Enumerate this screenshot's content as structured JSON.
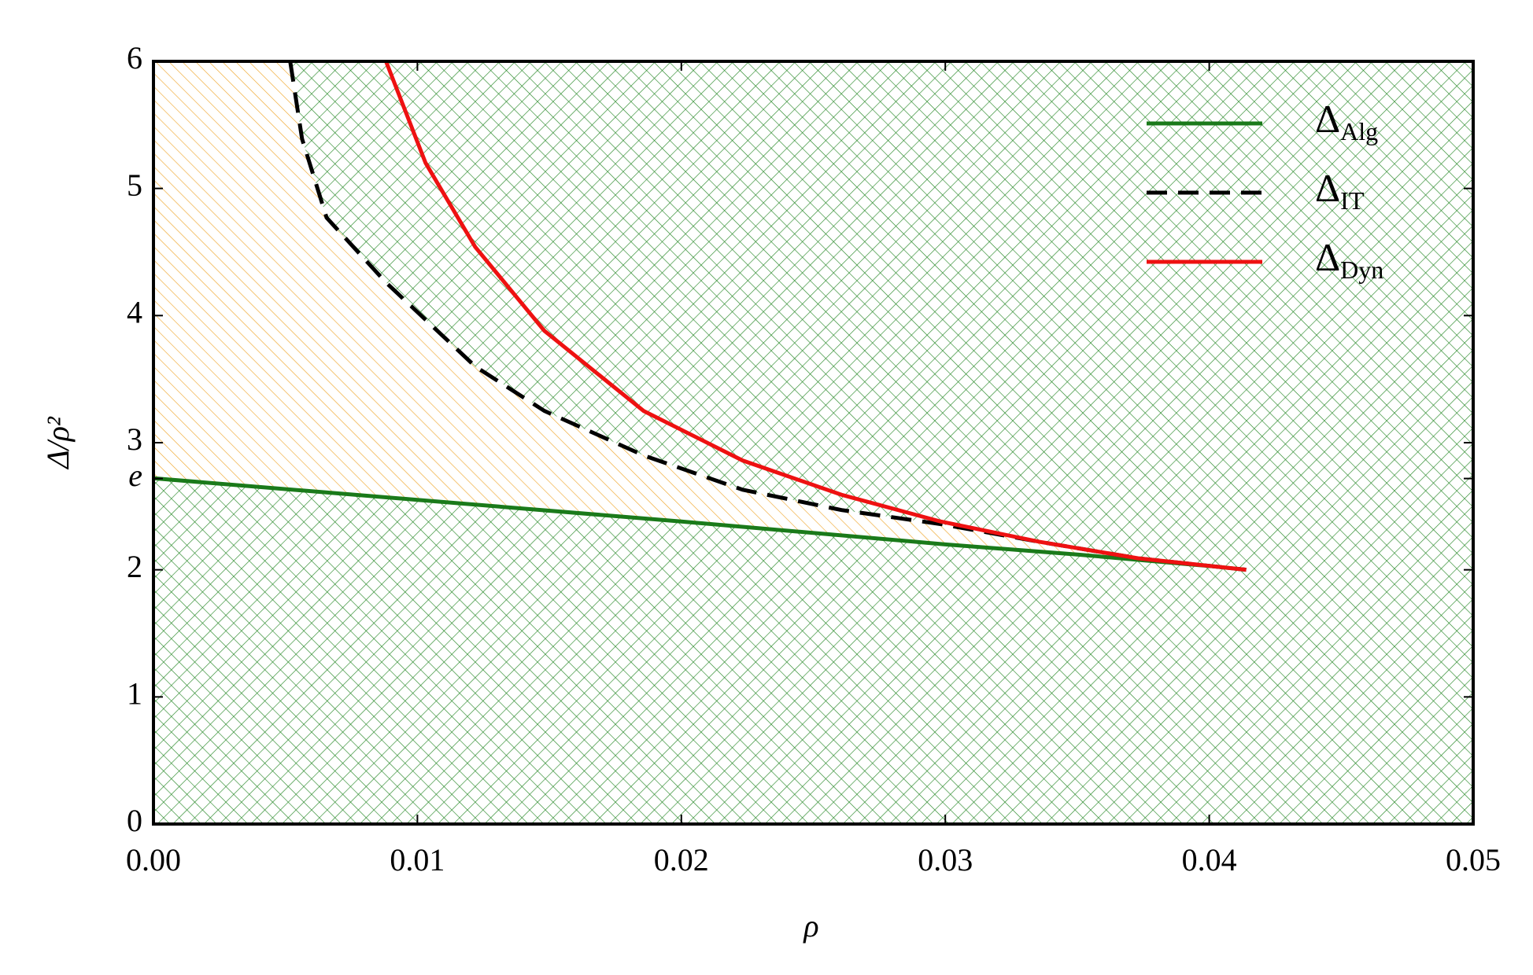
{
  "chart_data": {
    "type": "line",
    "xlabel": "ρ",
    "ylabel": "Δ/ρ²",
    "xlim": [
      0,
      0.05
    ],
    "ylim": [
      0,
      6
    ],
    "xticks": [
      {
        "value": 0,
        "label": "0.00"
      },
      0.01,
      0.02,
      0.03,
      0.04,
      0.05
    ],
    "yticks": [
      0,
      1,
      2,
      {
        "value": 2.718,
        "label": "e"
      },
      3,
      4,
      5,
      6
    ],
    "legend": "upper right",
    "series": [
      {
        "name": "ΔAlg",
        "color": "#1a7a1a",
        "dash": false,
        "x": [
          0,
          0.01,
          0.02,
          0.03,
          0.035,
          0.04,
          0.0414
        ],
        "values": [
          2.72,
          2.55,
          2.38,
          2.2,
          2.12,
          2.03,
          2.0
        ]
      },
      {
        "name": "ΔIT",
        "color": "#000000",
        "dash": true,
        "x": [
          0.00518,
          0.00563,
          0.00656,
          0.00881,
          0.01219,
          0.01481,
          0.01857,
          0.02232,
          0.02607,
          0.02982,
          0.03357,
          0.03732,
          0.0414
        ],
        "values": [
          6,
          5.39,
          4.77,
          4.26,
          3.6,
          3.25,
          2.9,
          2.63,
          2.47,
          2.36,
          2.22,
          2.09,
          2.0
        ]
      },
      {
        "name": "ΔDyn",
        "color": "#ee1111",
        "dash": false,
        "x": [
          0.00881,
          0.01031,
          0.01219,
          0.01481,
          0.01857,
          0.02232,
          0.02607,
          0.02982,
          0.03357,
          0.03732,
          0.0414
        ],
        "values": [
          6,
          5.2,
          4.54,
          3.88,
          3.25,
          2.86,
          2.59,
          2.38,
          2.22,
          2.09,
          2.0
        ]
      }
    ]
  }
}
